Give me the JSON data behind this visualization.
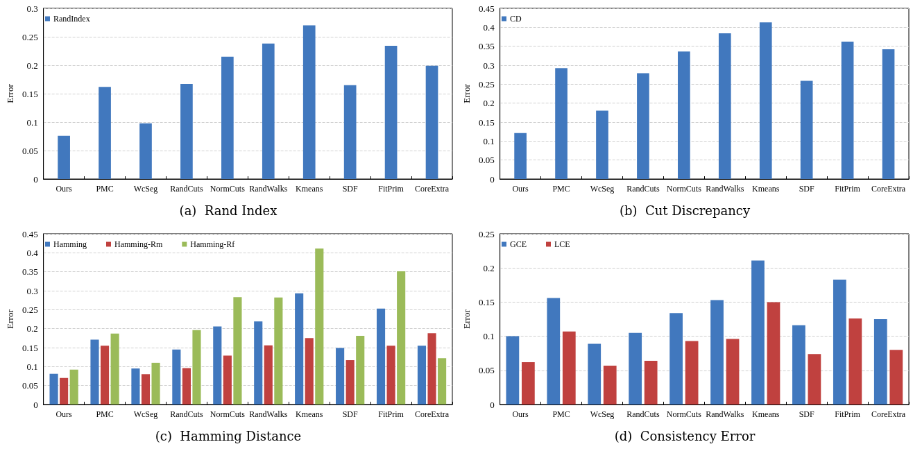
{
  "chart_data": [
    {
      "type": "bar",
      "title": "(a)  Rand Index",
      "ylabel": "Error",
      "categories": [
        "Ours",
        "PMC",
        "WcSeg",
        "RandCuts",
        "NormCuts",
        "RandWalks",
        "Kmeans",
        "SDF",
        "FitPrim",
        "CoreExtra"
      ],
      "series": [
        {
          "name": "RandIndex",
          "color": "#4178be",
          "values": [
            0.076,
            0.162,
            0.098,
            0.167,
            0.215,
            0.238,
            0.27,
            0.165,
            0.234,
            0.199
          ]
        }
      ],
      "ylim": [
        0,
        0.3
      ],
      "yticks": [
        0,
        0.05,
        0.1,
        0.15,
        0.2,
        0.25,
        0.3
      ],
      "grid": "y",
      "legend": "top left"
    },
    {
      "type": "bar",
      "title": "(b)  Cut Discrepancy",
      "ylabel": "Error",
      "categories": [
        "Ours",
        "PMC",
        "WcSeg",
        "RandCuts",
        "NormCuts",
        "RandWalks",
        "Kmeans",
        "SDF",
        "FitPrim",
        "CoreExtra"
      ],
      "series": [
        {
          "name": "CD",
          "color": "#4178be",
          "values": [
            0.121,
            0.292,
            0.18,
            0.279,
            0.336,
            0.384,
            0.413,
            0.259,
            0.362,
            0.342
          ]
        }
      ],
      "ylim": [
        0,
        0.45
      ],
      "yticks": [
        0,
        0.05,
        0.1,
        0.15,
        0.2,
        0.25,
        0.3,
        0.35,
        0.4,
        0.45
      ],
      "grid": "y",
      "legend": "top left"
    },
    {
      "type": "bar",
      "title": "(c)  Hamming Distance",
      "ylabel": "Error",
      "categories": [
        "Ours",
        "PMC",
        "WcSeg",
        "RandCuts",
        "NormCuts",
        "RandWalks",
        "Kmeans",
        "SDF",
        "FitPrim",
        "CoreExtra"
      ],
      "series": [
        {
          "name": "Hamming",
          "color": "#4178be",
          "values": [
            0.081,
            0.171,
            0.095,
            0.145,
            0.206,
            0.219,
            0.293,
            0.149,
            0.253,
            0.155
          ]
        },
        {
          "name": "Hamming-Rm",
          "color": "#c0413f",
          "values": [
            0.07,
            0.155,
            0.08,
            0.096,
            0.129,
            0.156,
            0.175,
            0.117,
            0.155,
            0.188
          ]
        },
        {
          "name": "Hamming-Rf",
          "color": "#9bbb59",
          "values": [
            0.092,
            0.187,
            0.11,
            0.196,
            0.283,
            0.282,
            0.411,
            0.181,
            0.351,
            0.122
          ]
        }
      ],
      "ylim": [
        0,
        0.45
      ],
      "yticks": [
        0,
        0.05,
        0.1,
        0.15,
        0.2,
        0.25,
        0.3,
        0.35,
        0.4,
        0.45
      ],
      "grid": "y",
      "legend": "top left"
    },
    {
      "type": "bar",
      "title": "(d)  Consistency Error",
      "ylabel": "Error",
      "categories": [
        "Ours",
        "PMC",
        "WcSeg",
        "RandCuts",
        "NormCuts",
        "RandWalks",
        "Kmeans",
        "SDF",
        "FitPrim",
        "CoreExtra"
      ],
      "series": [
        {
          "name": "GCE",
          "color": "#4178be",
          "values": [
            0.1,
            0.156,
            0.089,
            0.105,
            0.134,
            0.153,
            0.211,
            0.116,
            0.183,
            0.125
          ]
        },
        {
          "name": "LCE",
          "color": "#c0413f",
          "values": [
            0.062,
            0.107,
            0.057,
            0.064,
            0.093,
            0.096,
            0.15,
            0.074,
            0.126,
            0.08
          ]
        }
      ],
      "ylim": [
        0,
        0.25
      ],
      "yticks": [
        0,
        0.05,
        0.1,
        0.15,
        0.2,
        0.25
      ],
      "grid": "y",
      "legend": "top left"
    }
  ]
}
